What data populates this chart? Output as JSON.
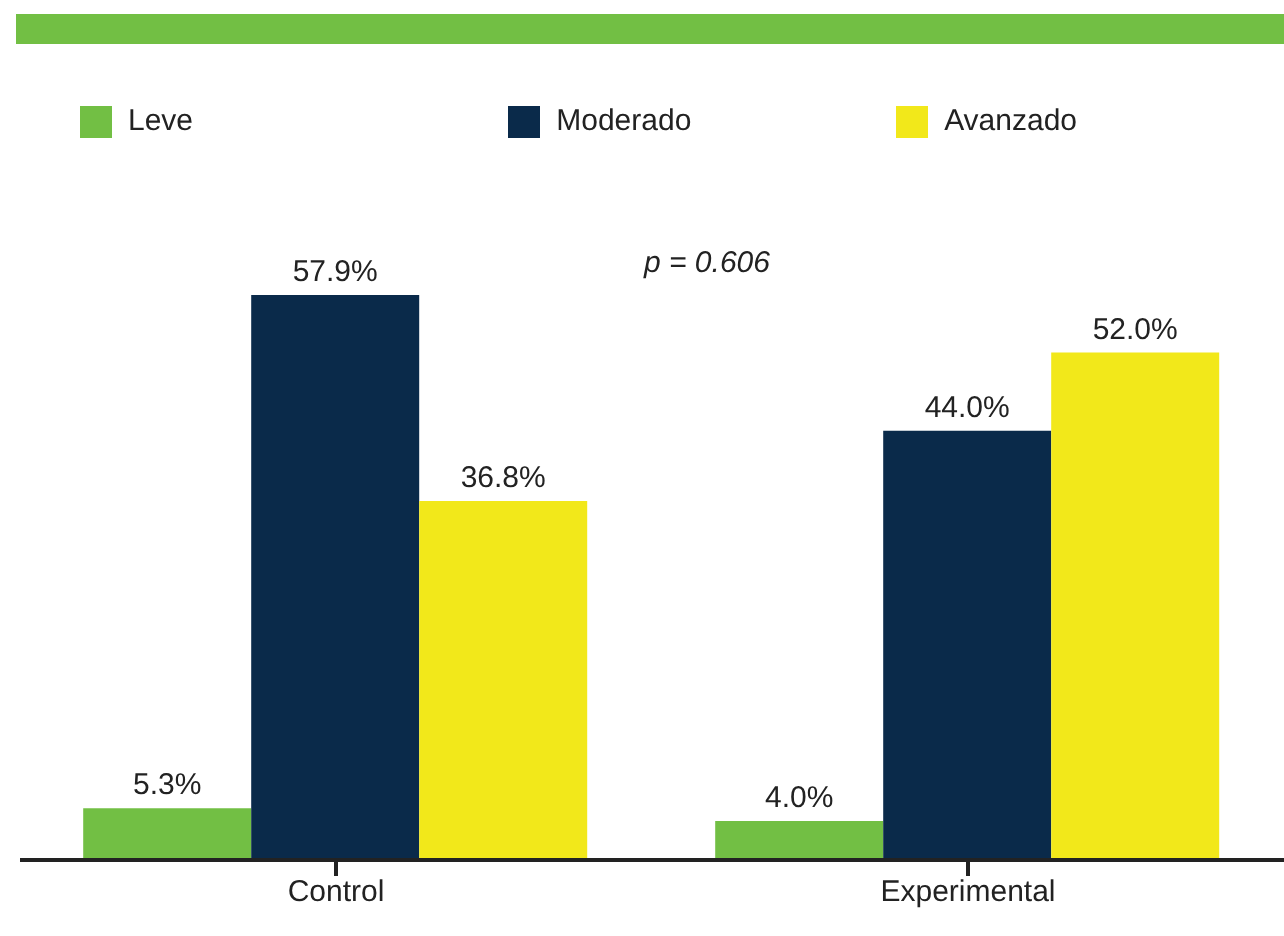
{
  "chart_data": {
    "type": "bar",
    "categories": [
      "Control",
      "Experimental"
    ],
    "series": [
      {
        "name": "Leve",
        "color": "#72bf44",
        "values": [
          5.3,
          4.0
        ],
        "value_labels": [
          "5.3%",
          "4.0%"
        ]
      },
      {
        "name": "Moderado",
        "color": "#0a2a4a",
        "values": [
          57.9,
          44.0
        ],
        "value_labels": [
          "57.9%",
          "44.0%"
        ]
      },
      {
        "name": "Avanzado",
        "color": "#f2e81a",
        "values": [
          36.8,
          52.0
        ],
        "value_labels": [
          "36.8%",
          "52.0%"
        ]
      }
    ],
    "annotations": [
      "p = 0.606"
    ],
    "legend": "top",
    "grid": false
  }
}
